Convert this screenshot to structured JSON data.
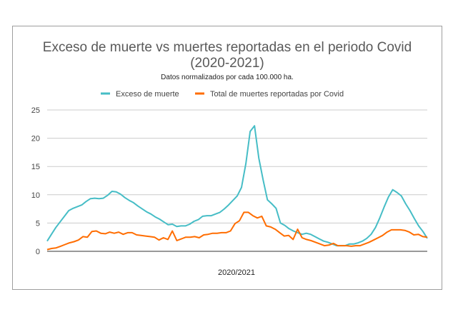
{
  "chart_data": {
    "type": "line",
    "title_line1": "Exceso de muerte vs muertes reportadas en el periodo Covid",
    "title_line2": "(2020-2021)",
    "subtitle": "Datos normalizados por cada 100.000 ha.",
    "xlabel": "2020/2021",
    "ylabel": "",
    "ylim": [
      0,
      25
    ],
    "yticks": [
      "0",
      "5",
      "10",
      "15",
      "20",
      "25"
    ],
    "grid": true,
    "legend_position": "top",
    "series": [
      {
        "name": "Exceso de muerte",
        "color": "#46bdc6",
        "values": [
          1.8,
          3.0,
          4.2,
          5.2,
          6.2,
          7.2,
          7.6,
          7.9,
          8.2,
          8.8,
          9.3,
          9.4,
          9.3,
          9.4,
          9.9,
          10.6,
          10.5,
          10.1,
          9.5,
          9.0,
          8.6,
          8.0,
          7.5,
          7.0,
          6.6,
          6.1,
          5.7,
          5.2,
          4.7,
          4.8,
          4.4,
          4.5,
          4.5,
          4.8,
          5.3,
          5.6,
          6.2,
          6.3,
          6.3,
          6.6,
          6.9,
          7.5,
          8.2,
          9.0,
          9.8,
          11.3,
          15.5,
          21.2,
          22.2,
          16.5,
          12.6,
          9.1,
          8.4,
          7.6,
          5.0,
          4.6,
          4.0,
          3.6,
          3.3,
          3.0,
          3.2,
          3.0,
          2.6,
          2.2,
          1.8,
          1.6,
          1.3,
          1.0,
          1.0,
          1.0,
          1.3,
          1.3,
          1.5,
          1.8,
          2.3,
          3.0,
          4.2,
          5.9,
          7.8,
          9.6,
          10.9,
          10.4,
          9.8,
          8.4,
          7.2,
          5.8,
          4.5,
          3.5,
          2.3
        ]
      },
      {
        "name": "Total de muertes reportadas por Covid",
        "color": "#ff6d01",
        "values": [
          0.3,
          0.5,
          0.6,
          0.9,
          1.2,
          1.5,
          1.7,
          2.0,
          2.6,
          2.5,
          3.5,
          3.6,
          3.2,
          3.1,
          3.4,
          3.2,
          3.4,
          3.0,
          3.3,
          3.3,
          2.9,
          2.8,
          2.7,
          2.6,
          2.5,
          2.0,
          2.4,
          2.1,
          3.6,
          1.9,
          2.2,
          2.5,
          2.5,
          2.6,
          2.4,
          2.9,
          3.0,
          3.2,
          3.2,
          3.3,
          3.3,
          3.6,
          4.9,
          5.4,
          6.9,
          6.9,
          6.3,
          5.9,
          6.2,
          4.5,
          4.3,
          3.9,
          3.3,
          2.7,
          2.8,
          2.1,
          3.9,
          2.4,
          2.1,
          1.9,
          1.6,
          1.3,
          1.0,
          1.1,
          1.4,
          1.0,
          1.0,
          1.0,
          0.9,
          1.0,
          1.0,
          1.3,
          1.6,
          2.0,
          2.4,
          2.8,
          3.4,
          3.8,
          3.8,
          3.8,
          3.7,
          3.4,
          2.9,
          3.0,
          2.6,
          2.5
        ]
      }
    ]
  }
}
